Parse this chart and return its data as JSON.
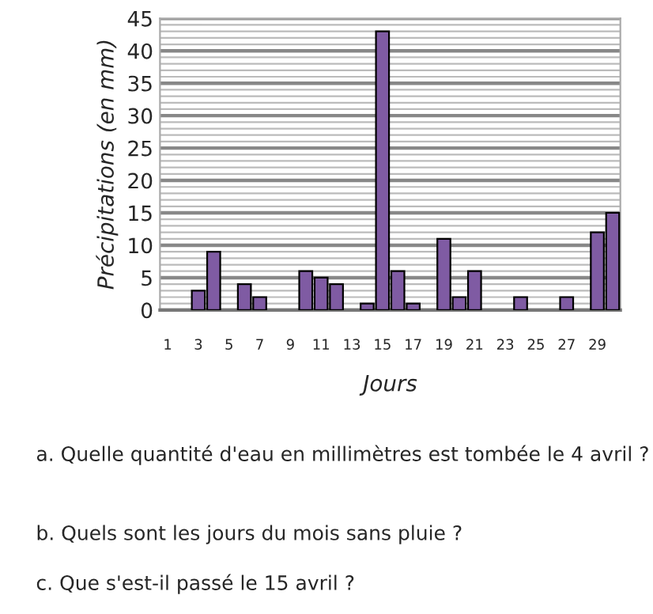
{
  "chart_data": {
    "type": "bar",
    "xlabel": "Jours",
    "ylabel": "Précipitations (en mm)",
    "categories": [
      "1",
      null,
      "3",
      null,
      "5",
      null,
      "7",
      null,
      "9",
      null,
      "11",
      null,
      "13",
      null,
      "15",
      null,
      "17",
      null,
      "19",
      null,
      "21",
      null,
      "23",
      null,
      "25",
      null,
      "27",
      null,
      "29",
      null
    ],
    "values": [
      0,
      0,
      3,
      9,
      0,
      4,
      2,
      0,
      0,
      6,
      5,
      4,
      0,
      1,
      43,
      6,
      1,
      0,
      11,
      2,
      6,
      0,
      0,
      2,
      0,
      0,
      2,
      0,
      12,
      15
    ],
    "color": "#7f5ba3",
    "ylim": [
      0,
      45
    ],
    "yticks": [
      0,
      5,
      10,
      15,
      20,
      25,
      30,
      35,
      40,
      45
    ],
    "grid": "y",
    "annotations": [
      "a. Quelle quantité d'eau en millimètres est tombée le 4 avril ?",
      "b. Quels sont les jours du mois sans pluie ?",
      "c. Que s'est-il passé le 15 avril ?"
    ]
  }
}
